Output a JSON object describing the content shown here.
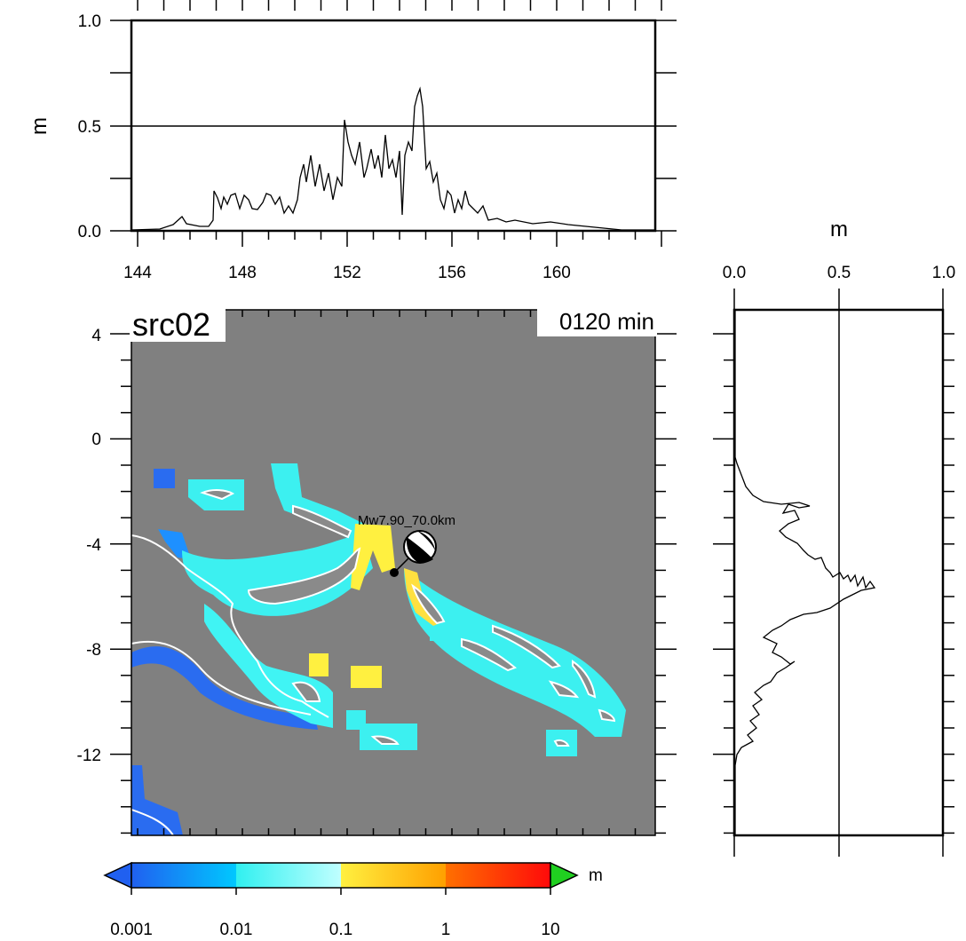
{
  "map": {
    "title": "src02",
    "time_label": "0120 min",
    "event_label": "Mw7.90_70.0km",
    "lon_ticks": [
      "144",
      "148",
      "152",
      "156",
      "160"
    ],
    "lat_ticks": [
      "4",
      "0",
      "-4",
      "-8",
      "-12"
    ],
    "lon_range": [
      143.7,
      163.8
    ],
    "lat_range": [
      -15,
      5
    ],
    "background_color": "#808080",
    "coastline_color": "#ffffff"
  },
  "top_profile": {
    "unit": "m",
    "y_ticks": [
      "1.0",
      "0.5",
      "0.0"
    ],
    "ylim": [
      0,
      1
    ]
  },
  "side_profile": {
    "unit": "m",
    "x_ticks": [
      "0.0",
      "0.5",
      "1.0"
    ],
    "xlim": [
      0,
      1
    ]
  },
  "colorbar": {
    "unit": "m",
    "tick_labels": [
      "0.001",
      "0.01",
      "0.1",
      "1",
      "10"
    ],
    "colors": [
      "#2060f0",
      "#00c8ff",
      "#40f4f4",
      "#b8ffff",
      "#fff040",
      "#ffb000",
      "#ff5000",
      "#ff1010",
      "#20d020"
    ]
  }
}
